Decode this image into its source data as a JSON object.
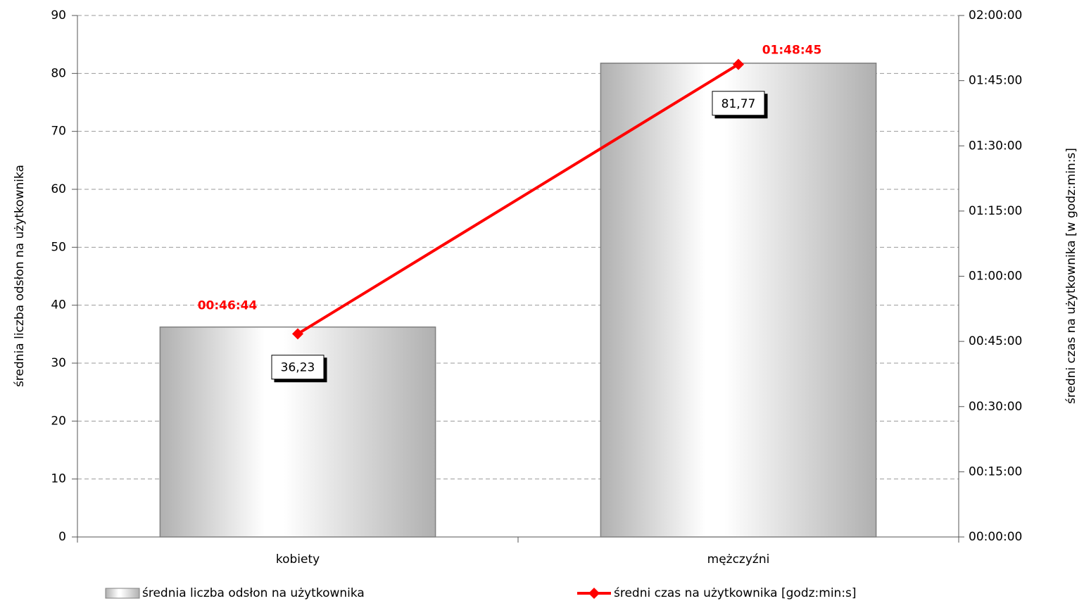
{
  "chart_data": {
    "type": "bar",
    "categories": [
      "kobiety",
      "mężczyźni"
    ],
    "ylabel": "średnia liczba odsłon na użytkownika",
    "y2label": "średni czas na użytkownika [w godz:min:s]",
    "series": [
      {
        "name": "średnia liczba odsłon na użytkownika",
        "type": "bar",
        "color": "#b0b0b0",
        "values": [
          36.23,
          81.77
        ],
        "value_labels": [
          "36,23",
          "81,77"
        ]
      },
      {
        "name": "średni czas na użytkownika [godz:min:s]",
        "type": "line",
        "axis": "y2",
        "color": "#ff0000",
        "values": [
          2804,
          6525
        ],
        "value_labels": [
          "00:46:44",
          "01:48:45"
        ]
      }
    ],
    "ylim": [
      0,
      90
    ],
    "yticks": [
      0,
      10,
      20,
      30,
      40,
      50,
      60,
      70,
      80,
      90
    ],
    "y2lim": [
      0,
      7200
    ],
    "y2ticks": [
      {
        "value": 0,
        "label": "00:00:00"
      },
      {
        "value": 900,
        "label": "00:15:00"
      },
      {
        "value": 1800,
        "label": "00:30:00"
      },
      {
        "value": 2700,
        "label": "00:45:00"
      },
      {
        "value": 3600,
        "label": "01:00:00"
      },
      {
        "value": 4500,
        "label": "01:15:00"
      },
      {
        "value": 5400,
        "label": "01:30:00"
      },
      {
        "value": 6300,
        "label": "01:45:00"
      },
      {
        "value": 7200,
        "label": "02:00:00"
      }
    ],
    "grid": true
  }
}
